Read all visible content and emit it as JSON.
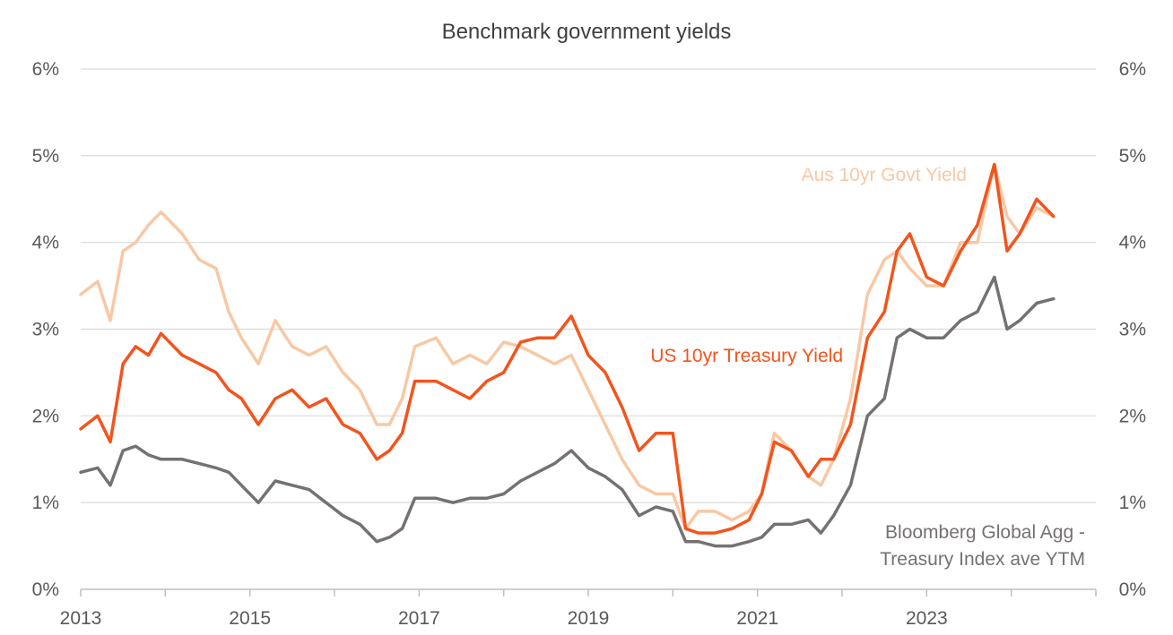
{
  "chart_data": {
    "type": "line",
    "title": "Benchmark government yields",
    "xlabel": "",
    "ylabel": "",
    "xlim": [
      2013.0,
      2025.0
    ],
    "ylim": [
      0,
      6
    ],
    "x_ticks": [
      "2013",
      "2015",
      "2017",
      "2019",
      "2021",
      "2023"
    ],
    "y_ticks_left": [
      "0%",
      "1%",
      "2%",
      "3%",
      "4%",
      "5%",
      "6%"
    ],
    "y_ticks_right": [
      "0%",
      "1%",
      "2%",
      "3%",
      "4%",
      "5%",
      "6%"
    ],
    "grid": "horizontal",
    "colors": {
      "aus": "#F8C8A4",
      "us": "#F3541C",
      "global": "#767171",
      "grid": "#D9D9D9",
      "axis": "#BFBFBF"
    },
    "series": [
      {
        "key": "aus",
        "name": "Aus 10yr Govt Yield",
        "x": [
          2013.0,
          2013.2,
          2013.35,
          2013.5,
          2013.65,
          2013.8,
          2013.95,
          2014.2,
          2014.4,
          2014.6,
          2014.75,
          2014.9,
          2015.1,
          2015.3,
          2015.5,
          2015.7,
          2015.9,
          2016.1,
          2016.3,
          2016.5,
          2016.65,
          2016.8,
          2016.95,
          2017.2,
          2017.4,
          2017.6,
          2017.8,
          2018.0,
          2018.2,
          2018.4,
          2018.6,
          2018.8,
          2019.0,
          2019.2,
          2019.4,
          2019.6,
          2019.8,
          2020.0,
          2020.15,
          2020.3,
          2020.5,
          2020.7,
          2020.9,
          2021.05,
          2021.2,
          2021.4,
          2021.6,
          2021.75,
          2021.9,
          2022.1,
          2022.3,
          2022.5,
          2022.65,
          2022.8,
          2023.0,
          2023.2,
          2023.4,
          2023.6,
          2023.8,
          2023.95,
          2024.1,
          2024.3,
          2024.5
        ],
        "values": [
          3.4,
          3.55,
          3.1,
          3.9,
          4.0,
          4.2,
          4.35,
          4.1,
          3.8,
          3.7,
          3.2,
          2.9,
          2.6,
          3.1,
          2.8,
          2.7,
          2.8,
          2.5,
          2.3,
          1.9,
          1.9,
          2.2,
          2.8,
          2.9,
          2.6,
          2.7,
          2.6,
          2.85,
          2.8,
          2.7,
          2.6,
          2.7,
          2.3,
          1.9,
          1.5,
          1.2,
          1.1,
          1.1,
          0.7,
          0.9,
          0.9,
          0.8,
          0.9,
          1.1,
          1.8,
          1.6,
          1.3,
          1.2,
          1.5,
          2.2,
          3.4,
          3.8,
          3.9,
          3.7,
          3.5,
          3.5,
          4.0,
          4.0,
          4.9,
          4.3,
          4.1,
          4.4,
          4.3
        ]
      },
      {
        "key": "us",
        "name": "US 10yr Treasury Yield",
        "x": [
          2013.0,
          2013.2,
          2013.35,
          2013.5,
          2013.65,
          2013.8,
          2013.95,
          2014.2,
          2014.4,
          2014.6,
          2014.75,
          2014.9,
          2015.1,
          2015.3,
          2015.5,
          2015.7,
          2015.9,
          2016.1,
          2016.3,
          2016.5,
          2016.65,
          2016.8,
          2016.95,
          2017.2,
          2017.4,
          2017.6,
          2017.8,
          2018.0,
          2018.2,
          2018.4,
          2018.6,
          2018.8,
          2019.0,
          2019.2,
          2019.4,
          2019.6,
          2019.8,
          2020.0,
          2020.15,
          2020.3,
          2020.5,
          2020.7,
          2020.9,
          2021.05,
          2021.2,
          2021.4,
          2021.6,
          2021.75,
          2021.9,
          2022.1,
          2022.3,
          2022.5,
          2022.65,
          2022.8,
          2023.0,
          2023.2,
          2023.4,
          2023.6,
          2023.8,
          2023.95,
          2024.1,
          2024.3,
          2024.5
        ],
        "values": [
          1.85,
          2.0,
          1.7,
          2.6,
          2.8,
          2.7,
          2.95,
          2.7,
          2.6,
          2.5,
          2.3,
          2.2,
          1.9,
          2.2,
          2.3,
          2.1,
          2.2,
          1.9,
          1.8,
          1.5,
          1.6,
          1.8,
          2.4,
          2.4,
          2.3,
          2.2,
          2.4,
          2.5,
          2.85,
          2.9,
          2.9,
          3.15,
          2.7,
          2.5,
          2.1,
          1.6,
          1.8,
          1.8,
          0.7,
          0.65,
          0.65,
          0.7,
          0.8,
          1.1,
          1.7,
          1.6,
          1.3,
          1.5,
          1.5,
          1.9,
          2.9,
          3.2,
          3.9,
          4.1,
          3.6,
          3.5,
          3.9,
          4.2,
          4.9,
          3.9,
          4.1,
          4.5,
          4.3
        ]
      },
      {
        "key": "global",
        "name": "Bloomberg Global Agg - Treasury Index ave YTM",
        "x": [
          2013.0,
          2013.2,
          2013.35,
          2013.5,
          2013.65,
          2013.8,
          2013.95,
          2014.2,
          2014.4,
          2014.6,
          2014.75,
          2014.9,
          2015.1,
          2015.3,
          2015.5,
          2015.7,
          2015.9,
          2016.1,
          2016.3,
          2016.5,
          2016.65,
          2016.8,
          2016.95,
          2017.2,
          2017.4,
          2017.6,
          2017.8,
          2018.0,
          2018.2,
          2018.4,
          2018.6,
          2018.8,
          2019.0,
          2019.2,
          2019.4,
          2019.6,
          2019.8,
          2020.0,
          2020.15,
          2020.3,
          2020.5,
          2020.7,
          2020.9,
          2021.05,
          2021.2,
          2021.4,
          2021.6,
          2021.75,
          2021.9,
          2022.1,
          2022.3,
          2022.5,
          2022.65,
          2022.8,
          2023.0,
          2023.2,
          2023.4,
          2023.6,
          2023.8,
          2023.95,
          2024.1,
          2024.3,
          2024.5
        ],
        "values": [
          1.35,
          1.4,
          1.2,
          1.6,
          1.65,
          1.55,
          1.5,
          1.5,
          1.45,
          1.4,
          1.35,
          1.2,
          1.0,
          1.25,
          1.2,
          1.15,
          1.0,
          0.85,
          0.75,
          0.55,
          0.6,
          0.7,
          1.05,
          1.05,
          1.0,
          1.05,
          1.05,
          1.1,
          1.25,
          1.35,
          1.45,
          1.6,
          1.4,
          1.3,
          1.15,
          0.85,
          0.95,
          0.9,
          0.55,
          0.55,
          0.5,
          0.5,
          0.55,
          0.6,
          0.75,
          0.75,
          0.8,
          0.65,
          0.85,
          1.2,
          2.0,
          2.2,
          2.9,
          3.0,
          2.9,
          2.9,
          3.1,
          3.2,
          3.6,
          3.0,
          3.1,
          3.3,
          3.35
        ]
      }
    ]
  }
}
